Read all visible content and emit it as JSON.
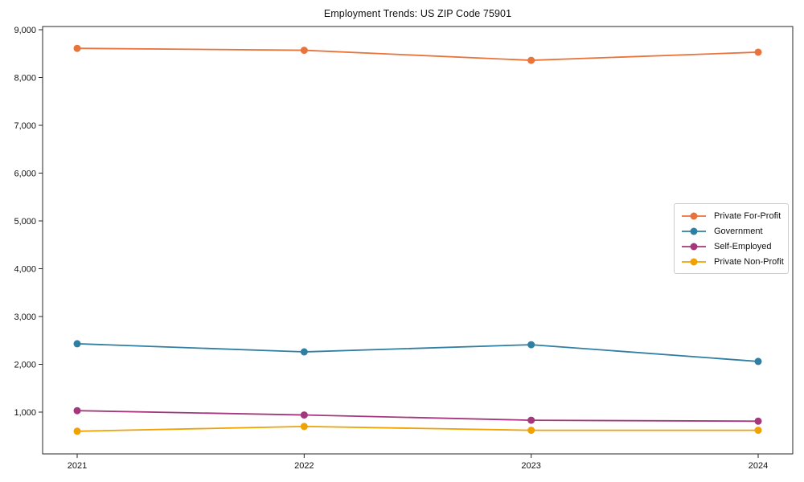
{
  "chart_data": {
    "type": "line",
    "title": "Employment Trends: US ZIP Code 75901",
    "xlabel": "",
    "ylabel": "",
    "x": [
      2021,
      2022,
      2023,
      2024
    ],
    "x_tick_labels": [
      "2021",
      "2022",
      "2023",
      "2024"
    ],
    "y_tick_values": [
      1000,
      2000,
      3000,
      4000,
      5000,
      6000,
      7000,
      8000,
      9000
    ],
    "y_tick_labels": [
      "1,000",
      "2,000",
      "3,000",
      "4,000",
      "5,000",
      "6,000",
      "7,000",
      "8,000",
      "9,000"
    ],
    "ylim": [
      130,
      9070
    ],
    "grid": false,
    "legend_position": "center right",
    "axis_color": "#262626",
    "marker": "circle",
    "series": [
      {
        "name": "Private For-Profit",
        "color": "#e8743b",
        "values": [
          8610,
          8570,
          8360,
          8530
        ]
      },
      {
        "name": "Government",
        "color": "#2f7fa3",
        "values": [
          2430,
          2260,
          2410,
          2060
        ]
      },
      {
        "name": "Self-Employed",
        "color": "#a5387d",
        "values": [
          1030,
          940,
          830,
          810
        ]
      },
      {
        "name": "Private Non-Profit",
        "color": "#f0a202",
        "values": [
          600,
          700,
          620,
          620
        ]
      }
    ]
  }
}
